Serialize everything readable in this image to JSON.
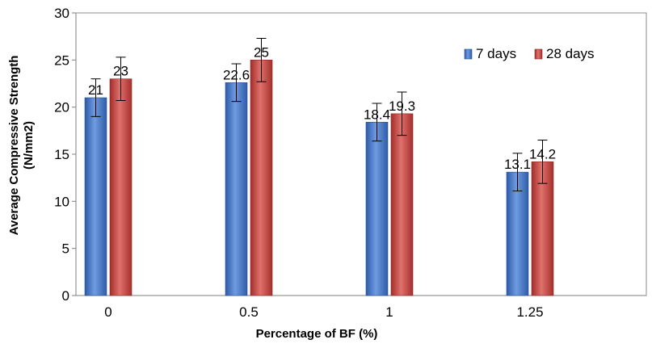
{
  "chart_data": {
    "type": "bar",
    "categories": [
      "0",
      "0.5",
      "1",
      "1.25"
    ],
    "series": [
      {
        "name": "7 days",
        "values": [
          21,
          22.6,
          18.4,
          13.1
        ],
        "labels": [
          "21",
          "22.6",
          "18.4",
          "13.1"
        ],
        "color": "#4472c4",
        "error": 2
      },
      {
        "name": "28 days",
        "values": [
          23,
          25,
          19.3,
          14.2
        ],
        "labels": [
          "23",
          "25",
          "19.3",
          "14.2"
        ],
        "color": "#c0504d",
        "error": 2.3
      }
    ],
    "xlabel": "Percentage of BF (%)",
    "ylabel_line1": "Average Compressive Strength",
    "ylabel_line2": "(N/mm2)",
    "ylim": [
      0,
      30
    ],
    "yticks": [
      "0",
      "5",
      "10",
      "15",
      "20",
      "25",
      "30"
    ],
    "legend_position": "top-right",
    "grid": false,
    "error_bars": true
  }
}
